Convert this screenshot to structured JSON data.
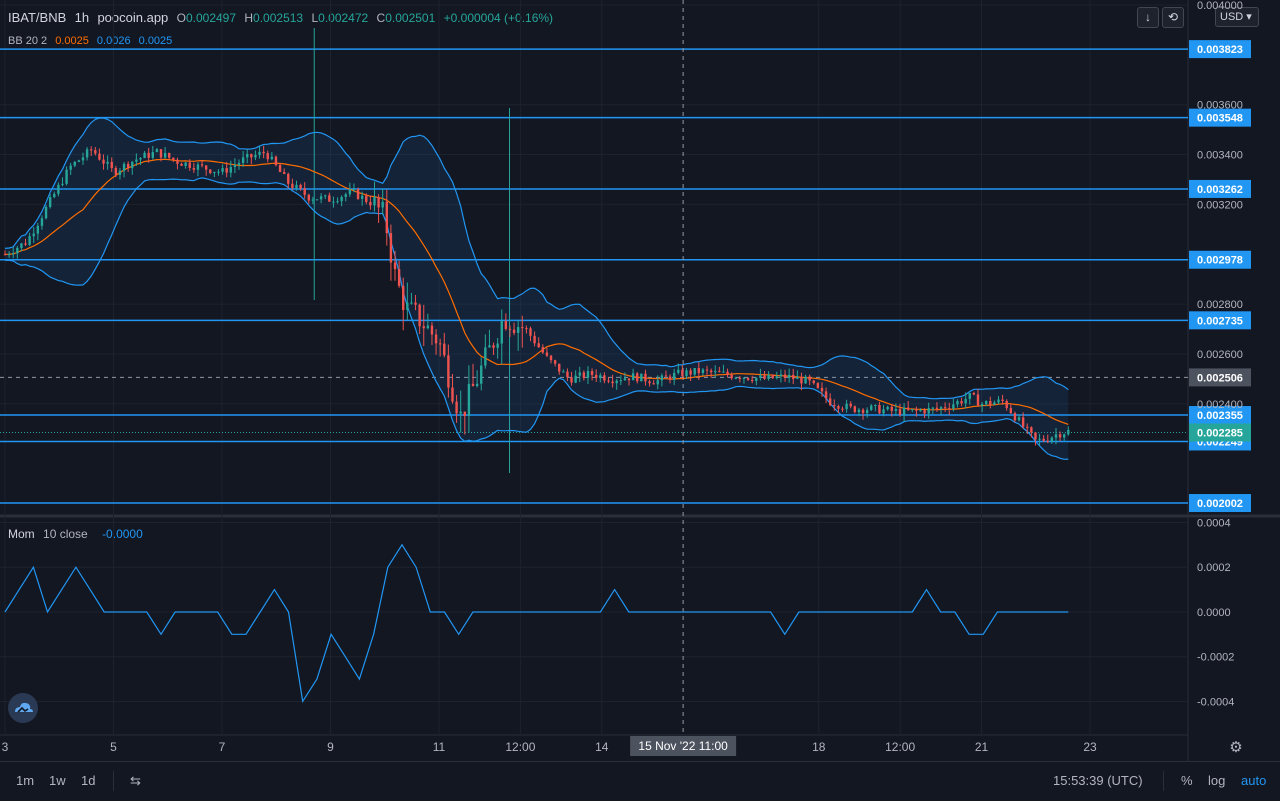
{
  "header": {
    "symbol": "IBAT/BNB",
    "interval": "1h",
    "source": "poocoin.app",
    "open_label": "O",
    "open": "0.002497",
    "high_label": "H",
    "high": "0.002513",
    "low_label": "L",
    "low": "0.002472",
    "close_label": "C",
    "close": "0.002501",
    "change": "+0.000004 (+0.16%)"
  },
  "bb_legend": {
    "name": "BB 20 2",
    "basis": "0.0025",
    "upper": "0.0026",
    "lower": "0.0025"
  },
  "mom_legend": {
    "name": "Mom",
    "params": "10 close",
    "value": "-0.0000"
  },
  "currency": "USD",
  "colors": {
    "background": "#131722",
    "line_blue": "#2196f3",
    "up": "#26a69a",
    "down": "#ef5350",
    "basis": "#ff6d00",
    "mom": "#2196f3"
  },
  "icons": {
    "scroll": "arrow-down-icon",
    "reset": "reset-icon",
    "logo": "cloud-logo-icon",
    "settings": "gear-icon",
    "compare": "compare-icon"
  },
  "chart_data": [
    {
      "type": "candlestick",
      "title": "IBAT/BNB · 1h · poocoin.app",
      "ylim": [
        0.00195,
        0.00402
      ],
      "y_ticks": [
        "0.004000",
        "0.003600",
        "0.003400",
        "0.003200",
        "0.002800",
        "0.002600",
        "0.002400"
      ],
      "x_ticks": [
        "3",
        "5",
        "7",
        "9",
        "11",
        "12:00",
        "14",
        "18",
        "12:00",
        "21",
        "23"
      ],
      "crosshair_x_label": "15 Nov '22   11:00",
      "horizontal_lines": [
        0.003823,
        0.003548,
        0.003262,
        0.002978,
        0.002735,
        0.002355,
        0.002249,
        0.002002
      ],
      "horizontal_line_labels": [
        "0.003823",
        "0.003548",
        "0.003262",
        "0.002978",
        "0.002735",
        "0.002355",
        "0.002249",
        "0.002002"
      ],
      "dashed_level": 0.002506,
      "dashed_level_label": "0.002506",
      "last_price": 0.002285,
      "last_price_label": "0.002285",
      "price_path": [
        [
          0,
          0.003
        ],
        [
          2,
          0.00305
        ],
        [
          4,
          0.0032
        ],
        [
          6,
          0.00335
        ],
        [
          8,
          0.00342
        ],
        [
          10,
          0.00333
        ],
        [
          12,
          0.00338
        ],
        [
          14,
          0.00341
        ],
        [
          16,
          0.00337
        ],
        [
          18,
          0.00335
        ],
        [
          20,
          0.00333
        ],
        [
          22,
          0.00338
        ],
        [
          24,
          0.00341
        ],
        [
          26,
          0.00329
        ],
        [
          28,
          0.00323
        ],
        [
          30,
          0.00322
        ],
        [
          32,
          0.00325
        ],
        [
          34,
          0.0032
        ],
        [
          35,
          0.00315
        ],
        [
          36,
          0.0029
        ],
        [
          37,
          0.00278
        ],
        [
          38,
          0.00275
        ],
        [
          40,
          0.00265
        ],
        [
          41,
          0.0025
        ],
        [
          42,
          0.00235
        ],
        [
          44,
          0.00255
        ],
        [
          46,
          0.00275
        ],
        [
          48,
          0.0027
        ],
        [
          50,
          0.00258
        ],
        [
          52,
          0.0025
        ],
        [
          54,
          0.00252
        ],
        [
          56,
          0.0025
        ],
        [
          58,
          0.00251
        ],
        [
          60,
          0.00249
        ],
        [
          62,
          0.00252
        ],
        [
          64,
          0.00253
        ],
        [
          66,
          0.00252
        ],
        [
          68,
          0.00251
        ],
        [
          70,
          0.0025
        ],
        [
          72,
          0.00251
        ],
        [
          74,
          0.00249
        ],
        [
          76,
          0.00241
        ],
        [
          78,
          0.00238
        ],
        [
          80,
          0.00238
        ],
        [
          82,
          0.00237
        ],
        [
          84,
          0.00237
        ],
        [
          86,
          0.00238
        ],
        [
          88,
          0.00241
        ],
        [
          89,
          0.00243
        ],
        [
          90,
          0.0024
        ],
        [
          92,
          0.00241
        ],
        [
          94,
          0.0023
        ],
        [
          95,
          0.00225
        ],
        [
          96,
          0.00226
        ],
        [
          97,
          0.00228
        ],
        [
          98,
          0.00229
        ]
      ]
    },
    {
      "type": "line",
      "title": "Mom 10 close",
      "ylim": [
        -0.00055,
        0.00042
      ],
      "y_ticks": [
        "0.0004",
        "0.0002",
        "0.0000",
        "-0.0002",
        "-0.0004"
      ],
      "series": [
        {
          "name": "Mom",
          "values": [
            0.0,
            0.0001,
            0.0002,
            0.0,
            0.0001,
            0.0002,
            0.0001,
            0.0,
            0.0,
            0.0,
            0.0,
            -0.0001,
            0.0,
            0.0,
            0.0,
            0.0,
            -0.0001,
            -0.0001,
            0.0,
            0.0001,
            0.0,
            -0.0004,
            -0.0003,
            -0.0001,
            -0.0002,
            -0.0003,
            -0.0001,
            0.0002,
            0.0003,
            0.0002,
            0.0,
            0.0,
            -0.0001,
            0.0,
            0.0,
            0.0,
            0.0,
            0.0,
            0.0,
            0.0,
            0.0,
            0.0,
            0.0,
            0.0001,
            0.0,
            0.0,
            0.0,
            0.0,
            0.0,
            0.0,
            0.0,
            0.0,
            0.0,
            0.0,
            0.0,
            -0.0001,
            0.0,
            0.0,
            0.0,
            0.0,
            0.0,
            0.0,
            0.0,
            0.0,
            0.0,
            0.0001,
            0.0,
            0.0,
            -0.0001,
            -0.0001,
            0.0,
            0.0,
            0.0,
            0.0,
            0.0,
            0.0
          ]
        }
      ]
    }
  ],
  "bottom": {
    "ranges": [
      "1m",
      "1w",
      "1d"
    ],
    "time": "15:53:39 (UTC)",
    "percent": "%",
    "log": "log",
    "auto": "auto"
  }
}
